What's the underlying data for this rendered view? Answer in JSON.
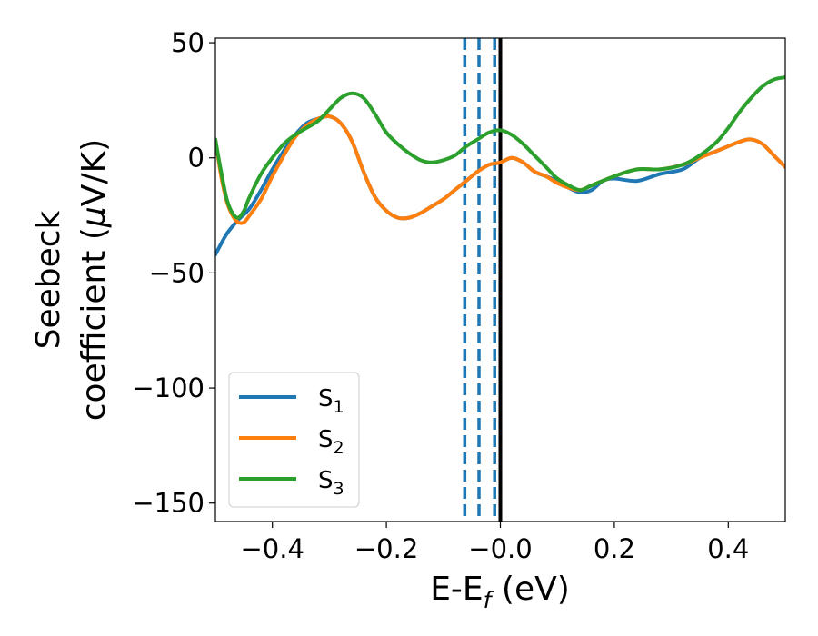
{
  "chart_data": {
    "type": "line",
    "xlabel": {
      "main": "E-E",
      "sub": "f",
      "unit": " (eV)"
    },
    "ylabel": {
      "line1": "Seebeck",
      "line2": "coefficient  (",
      "mu": "μ",
      "unit": "V/K)"
    },
    "xlim": [
      -0.5,
      0.5
    ],
    "ylim": [
      -158,
      52
    ],
    "x_ticks": [
      -0.4,
      -0.2,
      0.0,
      0.2,
      0.4
    ],
    "x_tick_labels": [
      "−0.4",
      "−0.2",
      "−0.0",
      "0.2",
      "0.4"
    ],
    "y_ticks": [
      50,
      0,
      -50,
      -100,
      -150
    ],
    "y_tick_labels": [
      "50",
      "0",
      "−50",
      "−100",
      "−150"
    ],
    "legend_position": "lower-left",
    "vlines": [
      {
        "x": -0.0625,
        "color": "#1f77b4",
        "style": "dashed"
      },
      {
        "x": -0.0375,
        "color": "#1f77b4",
        "style": "dashed"
      },
      {
        "x": -0.01,
        "color": "#1f77b4",
        "style": "dashed"
      },
      {
        "x": 0.0,
        "color": "#000000",
        "style": "solid"
      }
    ],
    "series": [
      {
        "name": "S",
        "sub": "1",
        "color": "#1f77b4",
        "points": [
          [
            -0.5,
            -42
          ],
          [
            -0.48,
            -33
          ],
          [
            -0.46,
            -27
          ],
          [
            -0.44,
            -22
          ],
          [
            -0.42,
            -14
          ],
          [
            -0.4,
            -5
          ],
          [
            -0.38,
            3
          ],
          [
            -0.36,
            10
          ],
          [
            -0.34,
            15
          ],
          [
            -0.32,
            17
          ],
          [
            -0.3,
            18
          ],
          [
            -0.28,
            15
          ],
          [
            -0.26,
            7
          ],
          [
            -0.24,
            -6
          ],
          [
            -0.22,
            -17
          ],
          [
            -0.2,
            -23
          ],
          [
            -0.18,
            -26
          ],
          [
            -0.16,
            -26
          ],
          [
            -0.14,
            -24
          ],
          [
            -0.12,
            -21
          ],
          [
            -0.1,
            -18
          ],
          [
            -0.08,
            -14
          ],
          [
            -0.06,
            -10
          ],
          [
            -0.04,
            -6
          ],
          [
            -0.02,
            -3
          ],
          [
            0.0,
            -2
          ],
          [
            0.02,
            0
          ],
          [
            0.04,
            -2
          ],
          [
            0.06,
            -6
          ],
          [
            0.08,
            -8
          ],
          [
            0.1,
            -10
          ],
          [
            0.12,
            -13
          ],
          [
            0.14,
            -15
          ],
          [
            0.16,
            -14
          ],
          [
            0.18,
            -10
          ],
          [
            0.2,
            -9
          ],
          [
            0.24,
            -10
          ],
          [
            0.28,
            -7
          ],
          [
            0.32,
            -5
          ],
          [
            0.35,
            0
          ],
          [
            0.38,
            3
          ],
          [
            0.42,
            7
          ],
          [
            0.44,
            8
          ],
          [
            0.46,
            6
          ],
          [
            0.48,
            1
          ],
          [
            0.5,
            -4
          ]
        ]
      },
      {
        "name": "S",
        "sub": "2",
        "color": "#ff7f0e",
        "points": [
          [
            -0.5,
            8
          ],
          [
            -0.49,
            -8
          ],
          [
            -0.48,
            -19
          ],
          [
            -0.47,
            -25
          ],
          [
            -0.46,
            -28
          ],
          [
            -0.45,
            -28
          ],
          [
            -0.44,
            -25
          ],
          [
            -0.42,
            -18
          ],
          [
            -0.4,
            -8
          ],
          [
            -0.38,
            1
          ],
          [
            -0.36,
            9
          ],
          [
            -0.34,
            14
          ],
          [
            -0.32,
            17
          ],
          [
            -0.3,
            18
          ],
          [
            -0.28,
            15
          ],
          [
            -0.26,
            7
          ],
          [
            -0.24,
            -6
          ],
          [
            -0.22,
            -17
          ],
          [
            -0.2,
            -23
          ],
          [
            -0.18,
            -26
          ],
          [
            -0.16,
            -26
          ],
          [
            -0.14,
            -24
          ],
          [
            -0.12,
            -21
          ],
          [
            -0.1,
            -18
          ],
          [
            -0.08,
            -14
          ],
          [
            -0.06,
            -10
          ],
          [
            -0.04,
            -6
          ],
          [
            -0.02,
            -3
          ],
          [
            0.0,
            -2
          ],
          [
            0.02,
            0
          ],
          [
            0.04,
            -2
          ],
          [
            0.06,
            -6
          ],
          [
            0.08,
            -8
          ],
          [
            0.1,
            -11
          ],
          [
            0.12,
            -13
          ],
          [
            0.14,
            -14
          ],
          [
            0.16,
            -12
          ],
          [
            0.2,
            -8
          ],
          [
            0.24,
            -5
          ],
          [
            0.28,
            -5
          ],
          [
            0.32,
            -3
          ],
          [
            0.35,
            0
          ],
          [
            0.38,
            3
          ],
          [
            0.42,
            7
          ],
          [
            0.44,
            8
          ],
          [
            0.46,
            6
          ],
          [
            0.48,
            1
          ],
          [
            0.5,
            -4
          ]
        ]
      },
      {
        "name": "S",
        "sub": "3",
        "color": "#2ca02c",
        "points": [
          [
            -0.5,
            8
          ],
          [
            -0.49,
            -6
          ],
          [
            -0.48,
            -18
          ],
          [
            -0.47,
            -24
          ],
          [
            -0.46,
            -26
          ],
          [
            -0.45,
            -23
          ],
          [
            -0.44,
            -17
          ],
          [
            -0.42,
            -7
          ],
          [
            -0.4,
            0
          ],
          [
            -0.38,
            6
          ],
          [
            -0.36,
            10
          ],
          [
            -0.34,
            13
          ],
          [
            -0.32,
            16
          ],
          [
            -0.3,
            21
          ],
          [
            -0.28,
            26
          ],
          [
            -0.26,
            28
          ],
          [
            -0.24,
            26
          ],
          [
            -0.22,
            19
          ],
          [
            -0.2,
            11
          ],
          [
            -0.18,
            6
          ],
          [
            -0.16,
            2
          ],
          [
            -0.14,
            -1
          ],
          [
            -0.12,
            -2
          ],
          [
            -0.1,
            -1
          ],
          [
            -0.08,
            1
          ],
          [
            -0.06,
            5
          ],
          [
            -0.04,
            8
          ],
          [
            -0.02,
            11
          ],
          [
            0.0,
            12
          ],
          [
            0.02,
            10
          ],
          [
            0.04,
            6
          ],
          [
            0.06,
            1
          ],
          [
            0.08,
            -4
          ],
          [
            0.1,
            -9
          ],
          [
            0.12,
            -12
          ],
          [
            0.14,
            -14
          ],
          [
            0.16,
            -12
          ],
          [
            0.2,
            -8
          ],
          [
            0.24,
            -5
          ],
          [
            0.28,
            -5
          ],
          [
            0.32,
            -3
          ],
          [
            0.35,
            1
          ],
          [
            0.38,
            7
          ],
          [
            0.4,
            13
          ],
          [
            0.42,
            20
          ],
          [
            0.44,
            26
          ],
          [
            0.46,
            31
          ],
          [
            0.48,
            34
          ],
          [
            0.5,
            35
          ]
        ]
      }
    ]
  }
}
